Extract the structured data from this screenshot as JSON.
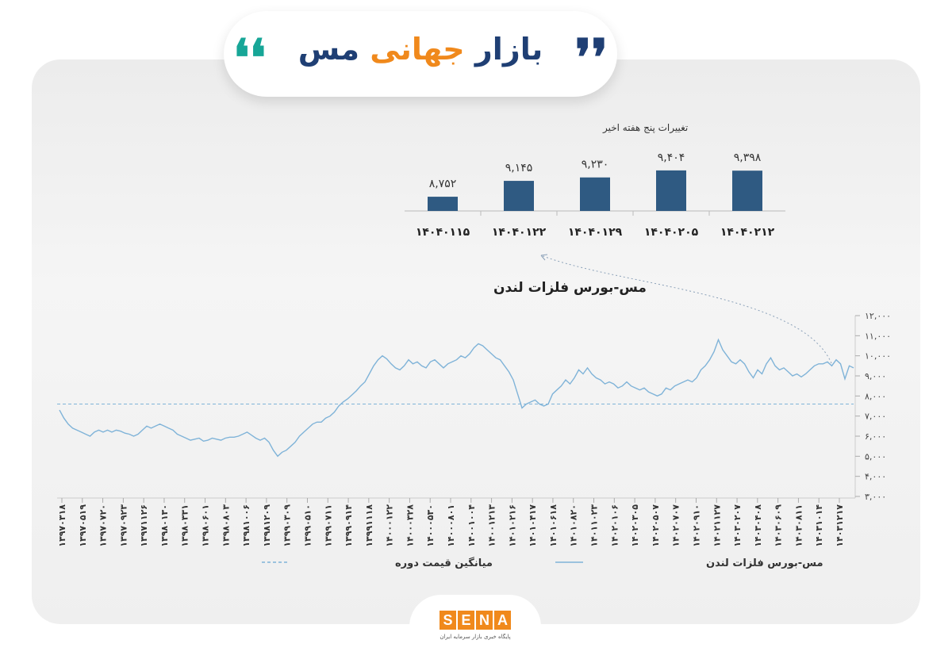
{
  "header": {
    "title_word1": "بازار",
    "title_word2": "جهانی",
    "title_word3": "مس",
    "quote_open": "❛❛",
    "quote_close": "❜❜"
  },
  "colors": {
    "accent_blue": "#1f3f74",
    "accent_orange": "#f0891c",
    "accent_teal": "#17a697",
    "line": "#7fb3d8",
    "bar": "#2f5a82"
  },
  "chart_data": [
    {
      "type": "bar",
      "title": "تغییرات پنج هفته اخیر",
      "categories": [
        "۱۴۰۴۰۱۱۵",
        "۱۴۰۴۰۱۲۲",
        "۱۴۰۴۰۱۲۹",
        "۱۴۰۴۰۲۰۵",
        "۱۴۰۴۰۲۱۲"
      ],
      "values": [
        8752,
        9145,
        9230,
        9404,
        9398
      ],
      "value_labels": [
        "۸,۷۵۲",
        "۹,۱۴۵",
        "۹,۲۳۰",
        "۹,۴۰۴",
        "۹,۳۹۸"
      ],
      "ylim": [
        8400,
        9500
      ]
    },
    {
      "type": "line",
      "title": "مس-بورس فلزات لندن",
      "ylim": [
        3000,
        12000
      ],
      "yticks": [
        "۱۲,۰۰۰",
        "۱۱,۰۰۰",
        "۱۰,۰۰۰",
        "۹,۰۰۰",
        "۸,۰۰۰",
        "۷,۰۰۰",
        "۶,۰۰۰",
        "۵,۰۰۰",
        "۴,۰۰۰",
        "۳,۰۰۰"
      ],
      "ytick_values": [
        12000,
        11000,
        10000,
        9000,
        8000,
        7000,
        6000,
        5000,
        4000,
        3000
      ],
      "xticks": [
        "۱۳۹۷۰۳۱۸",
        "۱۳۹۷۰۵۱۹",
        "۱۳۹۷۰۷۲۰",
        "۱۳۹۷۰۹۲۳",
        "۱۳۹۷۱۱۲۶",
        "۱۳۹۸۰۱۳۰",
        "۱۳۹۸۰۳۳۱",
        "۱۳۹۸۰۶۰۱",
        "۱۳۹۸۰۸۰۳",
        "۱۳۹۸۱۰۰۶",
        "۱۳۹۸۱۲۰۹",
        "۱۳۹۹۰۳۰۹",
        "۱۳۹۹۰۵۱۰",
        "۱۳۹۹۰۷۱۱",
        "۱۳۹۹۰۹۱۴",
        "۱۳۹۹۱۱۱۸",
        "۱۴۰۰۰۱۲۲",
        "۱۴۰۰۰۳۲۸",
        "۱۴۰۰۰۵۳۰",
        "۱۴۰۰۰۸۰۱",
        "۱۴۰۰۱۰۰۴",
        "۱۴۰۰۱۲۱۳",
        "۱۴۰۱۰۲۱۶",
        "۱۴۰۱۰۴۱۷",
        "۱۴۰۱۰۶۱۸",
        "۱۴۰۱۰۸۲۰",
        "۱۴۰۱۱۰۲۳",
        "۱۴۰۲۰۱۰۶",
        "۱۴۰۲۰۳۰۵",
        "۱۴۰۲۰۵۰۷",
        "۱۴۰۲۰۷۰۷",
        "۱۴۰۲۰۹۱۰",
        "۱۴۰۲۱۱۲۷",
        "۱۴۰۳۰۲۰۷",
        "۱۴۰۳۰۴۰۸",
        "۱۴۰۳۰۶۰۹",
        "۱۴۰۳۰۸۱۱",
        "۱۴۰۳۱۰۱۴",
        "۱۴۰۳۱۲۱۷"
      ],
      "series": [
        {
          "name": "مس-بورس فلزات لندن",
          "style": "solid",
          "values": [
            7300,
            6900,
            6600,
            6400,
            6300,
            6200,
            6100,
            6000,
            6200,
            6300,
            6200,
            6300,
            6200,
            6300,
            6250,
            6150,
            6100,
            6000,
            6100,
            6300,
            6500,
            6400,
            6500,
            6600,
            6500,
            6400,
            6300,
            6100,
            6000,
            5900,
            5800,
            5850,
            5900,
            5750,
            5800,
            5900,
            5850,
            5800,
            5900,
            5950,
            5950,
            6000,
            6100,
            6200,
            6050,
            5900,
            5800,
            5900,
            5700,
            5300,
            5000,
            5200,
            5300,
            5500,
            5700,
            6000,
            6200,
            6400,
            6600,
            6700,
            6700,
            6900,
            7000,
            7200,
            7500,
            7700,
            7850,
            8050,
            8250,
            8500,
            8700,
            9100,
            9500,
            9800,
            10000,
            9850,
            9600,
            9400,
            9300,
            9500,
            9800,
            9600,
            9700,
            9500,
            9400,
            9700,
            9800,
            9600,
            9400,
            9600,
            9700,
            9800,
            10000,
            9900,
            10100,
            10400,
            10600,
            10500,
            10300,
            10100,
            9900,
            9800,
            9500,
            9200,
            8800,
            8100,
            7400,
            7600,
            7700,
            7800,
            7600,
            7500,
            7600,
            8100,
            8300,
            8500,
            8800,
            8600,
            8900,
            9300,
            9100,
            9400,
            9100,
            8900,
            8800,
            8600,
            8700,
            8600,
            8400,
            8500,
            8700,
            8500,
            8400,
            8300,
            8400,
            8200,
            8100,
            8000,
            8100,
            8400,
            8300,
            8500,
            8600,
            8700,
            8800,
            8700,
            8900,
            9300,
            9500,
            9800,
            10200,
            10800,
            10300,
            10000,
            9700,
            9600,
            9800,
            9600,
            9200,
            8900,
            9300,
            9100,
            9600,
            9900,
            9500,
            9300,
            9400,
            9200,
            9000,
            9100,
            8950,
            9100,
            9300,
            9500,
            9600,
            9600,
            9700,
            9500,
            9800,
            9600,
            8850,
            9500,
            9400
          ]
        },
        {
          "name": "میانگین قیمت دوره",
          "style": "dashed",
          "values": [
            7600
          ]
        }
      ],
      "legend": [
        "مس-بورس فلزات لندن",
        "میانگین قیمت دوره"
      ],
      "legend_position": "bottom"
    }
  ]
}
